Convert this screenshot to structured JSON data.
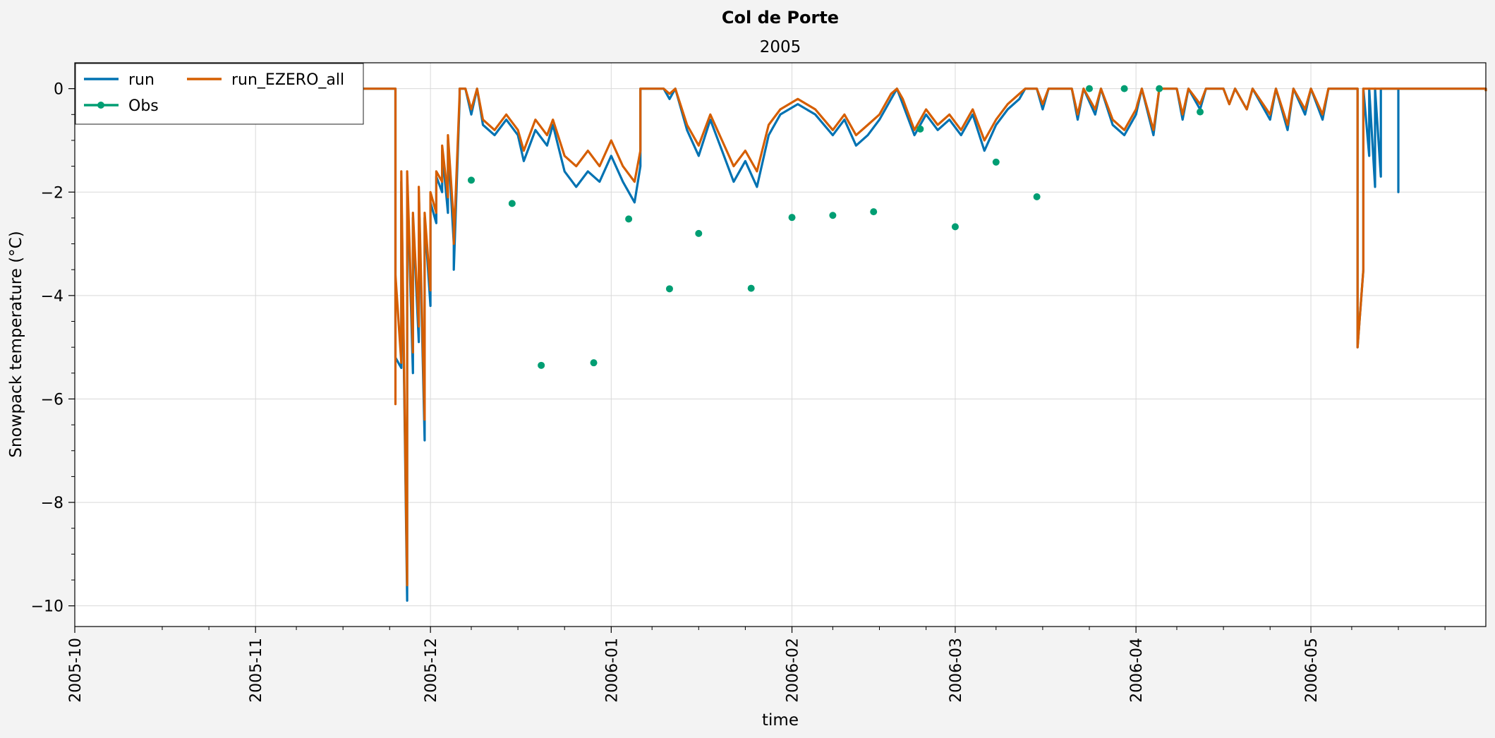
{
  "chart_data": {
    "type": "line",
    "title": "Col de Porte",
    "subtitle": "2005",
    "xlabel": "time",
    "ylabel": "Snowpack temperature (°C)",
    "xlim": [
      "2005-10-01",
      "2006-05-31"
    ],
    "ylim": [
      -10.4,
      0.5
    ],
    "grid": true,
    "legend_position": "top-left",
    "x_ticks": [
      "2005-10",
      "2005-11",
      "2005-12",
      "2006-01",
      "2006-02",
      "2006-03",
      "2006-04",
      "2006-05"
    ],
    "y_ticks": [
      "0",
      "−2",
      "−4",
      "−6",
      "−8",
      "−10"
    ],
    "y_tick_values": [
      0,
      -2,
      -4,
      -6,
      -8,
      -10
    ],
    "colors": {
      "run": "#0072b2",
      "run_EZERO_all": "#d55e00",
      "Obs": "#009e73"
    },
    "series": [
      {
        "name": "run",
        "style": "line",
        "color": "#0072b2",
        "points": [
          [
            "2005-10-01",
            0
          ],
          [
            "2005-11-25",
            0
          ],
          [
            "2005-11-25",
            -3.6
          ],
          [
            "2005-11-25",
            -5.2
          ],
          [
            "2005-11-26",
            -5.4
          ],
          [
            "2005-11-26",
            -1.8
          ],
          [
            "2005-11-27",
            -9.9
          ],
          [
            "2005-11-27",
            -1.7
          ],
          [
            "2005-11-28",
            -5.5
          ],
          [
            "2005-11-28",
            -2.5
          ],
          [
            "2005-11-29",
            -4.9
          ],
          [
            "2005-11-29",
            -2.0
          ],
          [
            "2005-11-30",
            -6.8
          ],
          [
            "2005-11-30",
            -2.5
          ],
          [
            "2005-12-01",
            -4.2
          ],
          [
            "2005-12-01",
            -2.2
          ],
          [
            "2005-12-02",
            -2.6
          ],
          [
            "2005-12-02",
            -1.7
          ],
          [
            "2005-12-03",
            -2.0
          ],
          [
            "2005-12-03",
            -1.2
          ],
          [
            "2005-12-04",
            -2.4
          ],
          [
            "2005-12-04",
            -1.0
          ],
          [
            "2005-12-05",
            -3.0
          ],
          [
            "2005-12-05",
            -3.5
          ],
          [
            "2005-12-06",
            -0.2
          ],
          [
            "2005-12-06",
            0
          ],
          [
            "2005-12-07",
            0
          ],
          [
            "2005-12-08",
            -0.5
          ],
          [
            "2005-12-09",
            0
          ],
          [
            "2005-12-10",
            -0.7
          ],
          [
            "2005-12-12",
            -0.9
          ],
          [
            "2005-12-14",
            -0.6
          ],
          [
            "2005-12-16",
            -0.9
          ],
          [
            "2005-12-17",
            -1.4
          ],
          [
            "2005-12-19",
            -0.8
          ],
          [
            "2005-12-21",
            -1.1
          ],
          [
            "2005-12-22",
            -0.7
          ],
          [
            "2005-12-24",
            -1.6
          ],
          [
            "2005-12-26",
            -1.9
          ],
          [
            "2005-12-28",
            -1.6
          ],
          [
            "2005-12-30",
            -1.8
          ],
          [
            "2006-01-01",
            -1.3
          ],
          [
            "2006-01-03",
            -1.8
          ],
          [
            "2006-01-05",
            -2.2
          ],
          [
            "2006-01-06",
            -1.5
          ],
          [
            "2006-01-06",
            0
          ],
          [
            "2006-01-10",
            0
          ],
          [
            "2006-01-11",
            -0.2
          ],
          [
            "2006-01-12",
            0
          ],
          [
            "2006-01-14",
            -0.8
          ],
          [
            "2006-01-16",
            -1.3
          ],
          [
            "2006-01-18",
            -0.6
          ],
          [
            "2006-01-20",
            -1.2
          ],
          [
            "2006-01-22",
            -1.8
          ],
          [
            "2006-01-24",
            -1.4
          ],
          [
            "2006-01-26",
            -1.9
          ],
          [
            "2006-01-28",
            -0.9
          ],
          [
            "2006-01-30",
            -0.5
          ],
          [
            "2006-02-02",
            -0.3
          ],
          [
            "2006-02-05",
            -0.5
          ],
          [
            "2006-02-08",
            -0.9
          ],
          [
            "2006-02-10",
            -0.6
          ],
          [
            "2006-02-12",
            -1.1
          ],
          [
            "2006-02-14",
            -0.9
          ],
          [
            "2006-02-16",
            -0.6
          ],
          [
            "2006-02-18",
            -0.2
          ],
          [
            "2006-02-19",
            0
          ],
          [
            "2006-02-20",
            -0.3
          ],
          [
            "2006-02-22",
            -0.9
          ],
          [
            "2006-02-24",
            -0.5
          ],
          [
            "2006-02-26",
            -0.8
          ],
          [
            "2006-02-28",
            -0.6
          ],
          [
            "2006-03-02",
            -0.9
          ],
          [
            "2006-03-04",
            -0.5
          ],
          [
            "2006-03-06",
            -1.2
          ],
          [
            "2006-03-08",
            -0.7
          ],
          [
            "2006-03-10",
            -0.4
          ],
          [
            "2006-03-12",
            -0.2
          ],
          [
            "2006-03-13",
            0
          ],
          [
            "2006-03-15",
            0
          ],
          [
            "2006-03-16",
            -0.4
          ],
          [
            "2006-03-17",
            0
          ],
          [
            "2006-03-21",
            0
          ],
          [
            "2006-03-22",
            -0.6
          ],
          [
            "2006-03-23",
            0
          ],
          [
            "2006-03-25",
            -0.5
          ],
          [
            "2006-03-26",
            0
          ],
          [
            "2006-03-28",
            -0.7
          ],
          [
            "2006-03-30",
            -0.9
          ],
          [
            "2006-04-01",
            -0.5
          ],
          [
            "2006-04-02",
            0
          ],
          [
            "2006-04-04",
            -0.9
          ],
          [
            "2006-04-05",
            0
          ],
          [
            "2006-04-08",
            0
          ],
          [
            "2006-04-09",
            -0.6
          ],
          [
            "2006-04-10",
            0
          ],
          [
            "2006-04-12",
            -0.4
          ],
          [
            "2006-04-13",
            0
          ],
          [
            "2006-04-16",
            0
          ],
          [
            "2006-04-17",
            -0.3
          ],
          [
            "2006-04-18",
            0
          ],
          [
            "2006-04-20",
            -0.4
          ],
          [
            "2006-04-21",
            0
          ],
          [
            "2006-04-24",
            -0.6
          ],
          [
            "2006-04-25",
            0
          ],
          [
            "2006-04-27",
            -0.8
          ],
          [
            "2006-04-28",
            0
          ],
          [
            "2006-04-30",
            -0.5
          ],
          [
            "2006-05-01",
            0
          ],
          [
            "2006-05-03",
            -0.6
          ],
          [
            "2006-05-04",
            0
          ],
          [
            "2006-05-09",
            0
          ],
          [
            "2006-05-09",
            -5.0
          ],
          [
            "2006-05-10",
            -3.5
          ],
          [
            "2006-05-10",
            0
          ],
          [
            "2006-05-11",
            -1.3
          ],
          [
            "2006-05-11",
            0
          ],
          [
            "2006-05-12",
            -1.9
          ],
          [
            "2006-05-12",
            0
          ],
          [
            "2006-05-13",
            -1.7
          ],
          [
            "2006-05-13",
            0
          ],
          [
            "2006-05-16",
            0
          ],
          [
            "2006-05-16",
            -2.0
          ],
          [
            "2006-05-16",
            0
          ],
          [
            "2006-05-31",
            0
          ]
        ]
      },
      {
        "name": "run_EZERO_all",
        "style": "line",
        "color": "#d55e00",
        "points": [
          [
            "2005-10-01",
            0
          ],
          [
            "2005-11-25",
            0
          ],
          [
            "2005-11-25",
            -6.1
          ],
          [
            "2005-11-25",
            -3.6
          ],
          [
            "2005-11-26",
            -5.3
          ],
          [
            "2005-11-26",
            -1.6
          ],
          [
            "2005-11-27",
            -9.6
          ],
          [
            "2005-11-27",
            -1.6
          ],
          [
            "2005-11-28",
            -5.1
          ],
          [
            "2005-11-28",
            -2.4
          ],
          [
            "2005-11-29",
            -4.6
          ],
          [
            "2005-11-29",
            -1.9
          ],
          [
            "2005-11-30",
            -6.4
          ],
          [
            "2005-11-30",
            -2.4
          ],
          [
            "2005-12-01",
            -3.9
          ],
          [
            "2005-12-01",
            -2.0
          ],
          [
            "2005-12-02",
            -2.4
          ],
          [
            "2005-12-02",
            -1.6
          ],
          [
            "2005-12-03",
            -1.8
          ],
          [
            "2005-12-03",
            -1.1
          ],
          [
            "2005-12-04",
            -2.1
          ],
          [
            "2005-12-04",
            -0.9
          ],
          [
            "2005-12-05",
            -2.6
          ],
          [
            "2005-12-05",
            -3.0
          ],
          [
            "2005-12-06",
            -0.1
          ],
          [
            "2005-12-06",
            0
          ],
          [
            "2005-12-07",
            0
          ],
          [
            "2005-12-08",
            -0.4
          ],
          [
            "2005-12-09",
            0
          ],
          [
            "2005-12-10",
            -0.6
          ],
          [
            "2005-12-12",
            -0.8
          ],
          [
            "2005-12-14",
            -0.5
          ],
          [
            "2005-12-16",
            -0.8
          ],
          [
            "2005-12-17",
            -1.2
          ],
          [
            "2005-12-19",
            -0.6
          ],
          [
            "2005-12-21",
            -0.9
          ],
          [
            "2005-12-22",
            -0.6
          ],
          [
            "2005-12-24",
            -1.3
          ],
          [
            "2005-12-26",
            -1.5
          ],
          [
            "2005-12-28",
            -1.2
          ],
          [
            "2005-12-30",
            -1.5
          ],
          [
            "2006-01-01",
            -1.0
          ],
          [
            "2006-01-03",
            -1.5
          ],
          [
            "2006-01-05",
            -1.8
          ],
          [
            "2006-01-06",
            -1.2
          ],
          [
            "2006-01-06",
            0
          ],
          [
            "2006-01-10",
            0
          ],
          [
            "2006-01-11",
            -0.1
          ],
          [
            "2006-01-12",
            0
          ],
          [
            "2006-01-14",
            -0.7
          ],
          [
            "2006-01-16",
            -1.1
          ],
          [
            "2006-01-18",
            -0.5
          ],
          [
            "2006-01-20",
            -1.0
          ],
          [
            "2006-01-22",
            -1.5
          ],
          [
            "2006-01-24",
            -1.2
          ],
          [
            "2006-01-26",
            -1.6
          ],
          [
            "2006-01-28",
            -0.7
          ],
          [
            "2006-01-30",
            -0.4
          ],
          [
            "2006-02-02",
            -0.2
          ],
          [
            "2006-02-05",
            -0.4
          ],
          [
            "2006-02-08",
            -0.8
          ],
          [
            "2006-02-10",
            -0.5
          ],
          [
            "2006-02-12",
            -0.9
          ],
          [
            "2006-02-14",
            -0.7
          ],
          [
            "2006-02-16",
            -0.5
          ],
          [
            "2006-02-18",
            -0.1
          ],
          [
            "2006-02-19",
            0
          ],
          [
            "2006-02-20",
            -0.2
          ],
          [
            "2006-02-22",
            -0.8
          ],
          [
            "2006-02-24",
            -0.4
          ],
          [
            "2006-02-26",
            -0.7
          ],
          [
            "2006-02-28",
            -0.5
          ],
          [
            "2006-03-02",
            -0.8
          ],
          [
            "2006-03-04",
            -0.4
          ],
          [
            "2006-03-06",
            -1.0
          ],
          [
            "2006-03-08",
            -0.6
          ],
          [
            "2006-03-10",
            -0.3
          ],
          [
            "2006-03-12",
            -0.1
          ],
          [
            "2006-03-13",
            0
          ],
          [
            "2006-03-15",
            0
          ],
          [
            "2006-03-16",
            -0.3
          ],
          [
            "2006-03-17",
            0
          ],
          [
            "2006-03-21",
            0
          ],
          [
            "2006-03-22",
            -0.5
          ],
          [
            "2006-03-23",
            0
          ],
          [
            "2006-03-25",
            -0.4
          ],
          [
            "2006-03-26",
            0
          ],
          [
            "2006-03-28",
            -0.6
          ],
          [
            "2006-03-30",
            -0.8
          ],
          [
            "2006-04-01",
            -0.4
          ],
          [
            "2006-04-02",
            0
          ],
          [
            "2006-04-04",
            -0.8
          ],
          [
            "2006-04-05",
            0
          ],
          [
            "2006-04-08",
            0
          ],
          [
            "2006-04-09",
            -0.5
          ],
          [
            "2006-04-10",
            0
          ],
          [
            "2006-04-12",
            -0.3
          ],
          [
            "2006-04-13",
            0
          ],
          [
            "2006-04-16",
            0
          ],
          [
            "2006-04-17",
            -0.3
          ],
          [
            "2006-04-18",
            0
          ],
          [
            "2006-04-20",
            -0.4
          ],
          [
            "2006-04-21",
            0
          ],
          [
            "2006-04-24",
            -0.5
          ],
          [
            "2006-04-25",
            0
          ],
          [
            "2006-04-27",
            -0.7
          ],
          [
            "2006-04-28",
            0
          ],
          [
            "2006-04-30",
            -0.4
          ],
          [
            "2006-05-01",
            0
          ],
          [
            "2006-05-03",
            -0.5
          ],
          [
            "2006-05-04",
            0
          ],
          [
            "2006-05-09",
            0
          ],
          [
            "2006-05-09",
            -5.0
          ],
          [
            "2006-05-10",
            -3.5
          ],
          [
            "2006-05-10",
            0
          ],
          [
            "2006-05-31",
            0
          ],
          [
            "2006-05-31",
            -0.05
          ]
        ]
      },
      {
        "name": "Obs",
        "style": "marker",
        "color": "#009e73",
        "points": [
          [
            "2005-12-08",
            -1.77
          ],
          [
            "2005-12-15",
            -2.22
          ],
          [
            "2005-12-20",
            -5.35
          ],
          [
            "2005-12-29",
            -5.3
          ],
          [
            "2006-01-04",
            -2.52
          ],
          [
            "2006-01-11",
            -3.87
          ],
          [
            "2006-01-16",
            -2.8
          ],
          [
            "2006-01-25",
            -3.86
          ],
          [
            "2006-02-01",
            -2.49
          ],
          [
            "2006-02-08",
            -2.45
          ],
          [
            "2006-02-15",
            -2.38
          ],
          [
            "2006-02-23",
            -0.78
          ],
          [
            "2006-03-01",
            -2.67
          ],
          [
            "2006-03-08",
            -1.42
          ],
          [
            "2006-03-15",
            -2.09
          ],
          [
            "2006-03-24",
            0.0
          ],
          [
            "2006-03-30",
            0.0
          ],
          [
            "2006-04-05",
            0.0
          ],
          [
            "2006-04-12",
            -0.45
          ]
        ]
      }
    ]
  }
}
